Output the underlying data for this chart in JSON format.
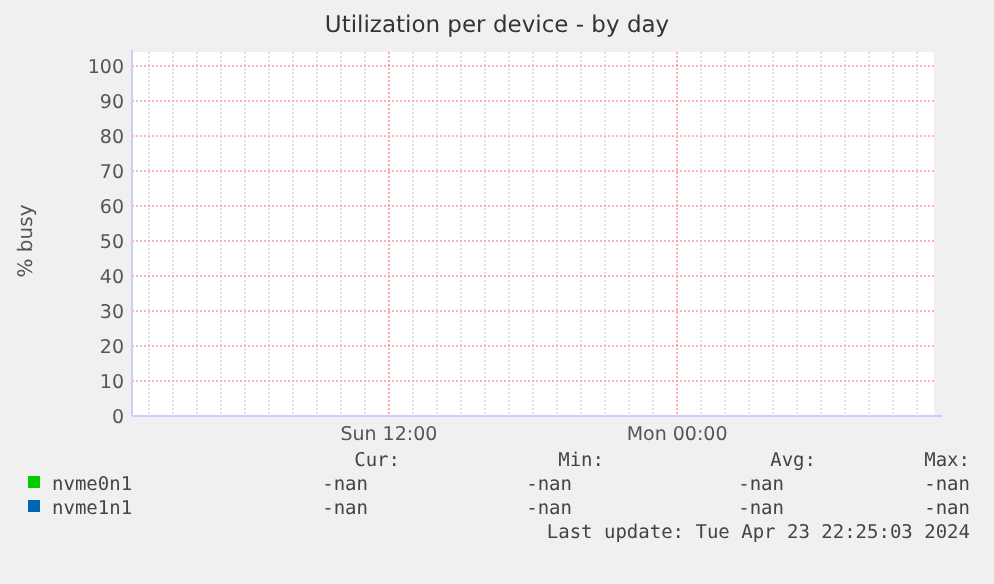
{
  "chart_data": {
    "type": "line",
    "title": "Utilization per device - by day",
    "ylabel": "% busy",
    "categories": [
      null,
      null,
      null,
      null,
      null,
      null,
      null,
      null,
      null,
      null,
      "Sun 12:00",
      null,
      null,
      null,
      null,
      null,
      null,
      null,
      null,
      null,
      null,
      null,
      "Mon 00:00",
      null,
      null,
      null,
      null,
      null,
      null,
      null,
      null,
      null,
      null
    ],
    "series": [
      {
        "name": "nvme0n1",
        "color": "#00cc00",
        "values": [
          null,
          null,
          null,
          null,
          null,
          null,
          null,
          null,
          null,
          null,
          null,
          null,
          null,
          null,
          null,
          null,
          null,
          null,
          null,
          null,
          null,
          null,
          null,
          null,
          null,
          null,
          null,
          null,
          null,
          null,
          null,
          null,
          null
        ]
      },
      {
        "name": "nvme1n1",
        "color": "#0066b3",
        "values": [
          null,
          null,
          null,
          null,
          null,
          null,
          null,
          null,
          null,
          null,
          null,
          null,
          null,
          null,
          null,
          null,
          null,
          null,
          null,
          null,
          null,
          null,
          null,
          null,
          null,
          null,
          null,
          null,
          null,
          null,
          null,
          null,
          null
        ]
      }
    ],
    "ylim": [
      0,
      100
    ],
    "yticks": [
      0,
      10,
      20,
      30,
      40,
      50,
      60,
      70,
      80,
      90,
      100
    ],
    "grid": true,
    "legend": "bottom",
    "annotations": [
      "Cur:",
      "Min:",
      "Avg:",
      "Max:",
      "-nan",
      "-nan",
      "-nan",
      "-nan",
      "-nan",
      "-nan",
      "-nan",
      "-nan",
      "Last update: Tue Apr 23 22:25:03 2024"
    ]
  }
}
